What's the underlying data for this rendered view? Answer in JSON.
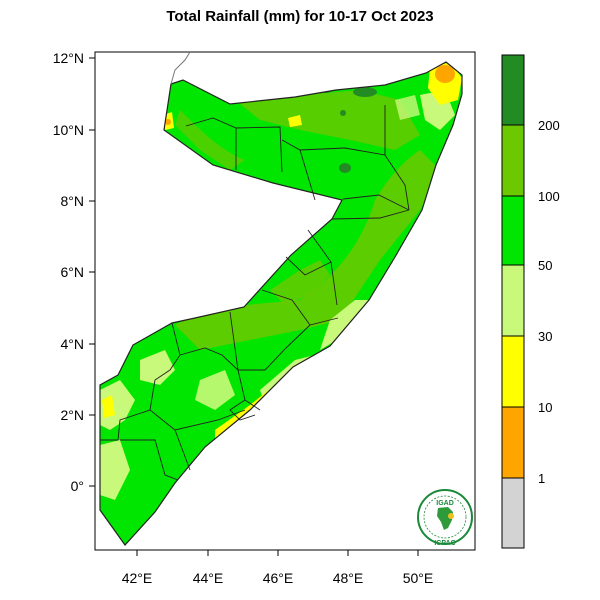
{
  "title": "Total Rainfall (mm) for 10-17 Oct 2023",
  "axes": {
    "lon_ticks": [
      "42°E",
      "44°E",
      "46°E",
      "48°E",
      "50°E"
    ],
    "lat_ticks": [
      "12°N",
      "10°N",
      "8°N",
      "6°N",
      "4°N",
      "2°N",
      "0°"
    ]
  },
  "legend": {
    "classes": [
      {
        "color": "#d3d3d3"
      },
      {
        "color": "#ffa500"
      },
      {
        "color": "#ffff00"
      },
      {
        "color": "#c9f97a"
      },
      {
        "color": "#00e600"
      },
      {
        "color": "#6cc800"
      },
      {
        "color": "#238b23"
      }
    ],
    "boundary_labels": [
      "1",
      "10",
      "30",
      "50",
      "100",
      "200"
    ]
  },
  "logo": {
    "top_text": "IGAD",
    "bottom_text": "ICPAC",
    "icon": "africa-map-icon"
  },
  "colors": {
    "land_main": "#00e600",
    "moderate": "#6cc800",
    "heavy": "#238b23",
    "light": "#c9f97a",
    "low": "#ffff00",
    "very_low": "#ffa500"
  }
}
